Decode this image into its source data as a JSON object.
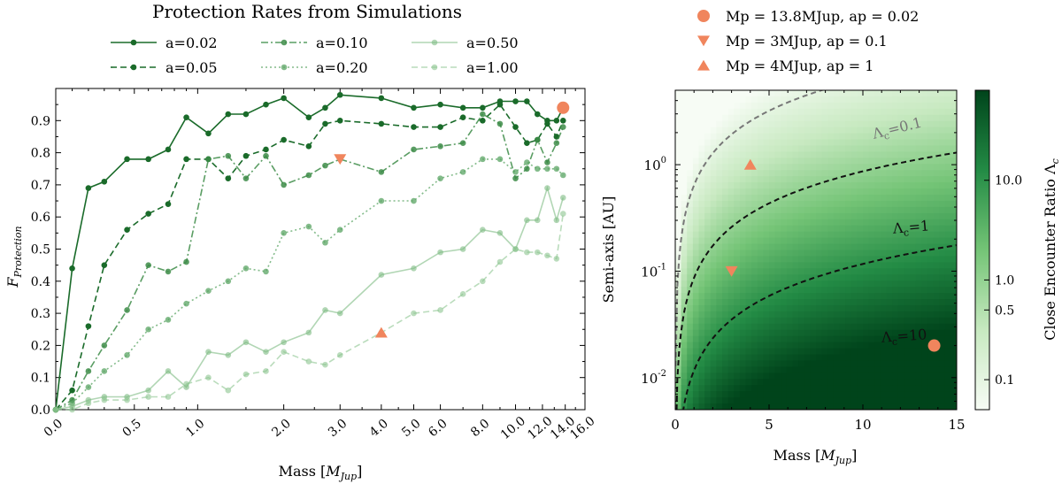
{
  "left": {
    "title": "Protection Rates from Simulations",
    "xlabel": "Mass [",
    "xlabel_unit": "M",
    "xlabel_sub": "Jup",
    "xlabel_close": "]",
    "ylabel": "F",
    "ylabel_sub": "Protection"
  },
  "right": {
    "xlabel": "Mass [",
    "xlabel_unit": "M",
    "xlabel_sub": "Jup",
    "xlabel_close": "]",
    "ylabel": "Semi-axis [AU]",
    "colorbar_label": "Close Encounter Ratio Λ",
    "colorbar_label_sub": "c",
    "contour_labels": [
      {
        "text": "Λc=0.1",
        "main": "Λ",
        "sub": "c",
        "rest": "=0.1"
      },
      {
        "text": "Λc=1",
        "main": "Λ",
        "sub": "c",
        "rest": "=1"
      },
      {
        "text": "Λc=10",
        "main": "Λ",
        "sub": "c",
        "rest": "=10"
      }
    ],
    "legend": [
      {
        "marker": "circle",
        "text": "Mp = 13.8MJup, ap = 0.02"
      },
      {
        "marker": "triangle-down",
        "text": "Mp = 3MJup, ap = 0.1"
      },
      {
        "marker": "triangle-up",
        "text": "Mp = 4MJup, ap = 1"
      }
    ]
  },
  "chart_data": [
    {
      "type": "line",
      "title": "Protection Rates from Simulations",
      "xlabel": "Mass [MJup]",
      "ylabel": "FProtection",
      "xscale": "symlog",
      "xticks": [
        "0.0",
        "0.5",
        "1.0",
        "2.0",
        "3.0",
        "4.0",
        "5.0",
        "6.0",
        "8.0",
        "10.0",
        "12.0",
        "14.0",
        "16.0"
      ],
      "xtick_values": [
        0,
        0.5,
        1,
        2,
        3,
        4,
        5,
        6,
        8,
        10,
        12,
        14,
        16
      ],
      "yticks": [
        "0.0",
        "0.1",
        "0.2",
        "0.3",
        "0.4",
        "0.5",
        "0.6",
        "0.7",
        "0.8",
        "0.9"
      ],
      "ylim": [
        0,
        1.0
      ],
      "grid": false,
      "legend_placement": "top, above plot",
      "x": [
        0,
        0.1,
        0.2,
        0.3,
        0.45,
        0.6,
        0.75,
        0.9,
        1.1,
        1.3,
        1.5,
        1.75,
        2.0,
        2.4,
        2.7,
        3.0,
        4.0,
        5.0,
        6.0,
        7.0,
        8.0,
        9.0,
        10.0,
        10.8,
        11.6,
        12.4,
        13.2,
        13.8
      ],
      "series": [
        {
          "name": "a=0.02",
          "color": "#1a6b2a",
          "style": "solid",
          "values": [
            0.0,
            0.44,
            0.69,
            0.71,
            0.78,
            0.78,
            0.81,
            0.91,
            0.86,
            0.92,
            0.92,
            0.95,
            0.97,
            0.91,
            0.94,
            0.98,
            0.97,
            0.94,
            0.95,
            0.94,
            0.94,
            0.96,
            0.96,
            0.96,
            0.92,
            0.9,
            0.9,
            0.94
          ]
        },
        {
          "name": "a=0.05",
          "color": "#1a6b2a",
          "style": "dashed",
          "values": [
            0.0,
            0.06,
            0.26,
            0.45,
            0.56,
            0.61,
            0.64,
            0.78,
            0.78,
            0.72,
            0.79,
            0.81,
            0.84,
            0.82,
            0.89,
            0.9,
            0.89,
            0.88,
            0.88,
            0.91,
            0.9,
            0.95,
            0.88,
            0.83,
            0.84,
            0.89,
            0.85,
            0.9
          ]
        },
        {
          "name": "a=0.10",
          "color": "#3d8c48",
          "style": "dashdot",
          "values": [
            0.0,
            0.03,
            0.12,
            0.2,
            0.31,
            0.45,
            0.43,
            0.46,
            0.78,
            0.79,
            0.72,
            0.79,
            0.7,
            0.73,
            0.76,
            0.78,
            0.74,
            0.81,
            0.82,
            0.83,
            0.92,
            0.89,
            0.72,
            0.75,
            0.84,
            0.77,
            0.83,
            0.88
          ]
        },
        {
          "name": "a=0.20",
          "color": "#5aa463",
          "style": "dotted",
          "values": [
            0.0,
            0.02,
            0.07,
            0.12,
            0.17,
            0.25,
            0.28,
            0.33,
            0.37,
            0.4,
            0.44,
            0.43,
            0.55,
            0.57,
            0.52,
            0.56,
            0.65,
            0.65,
            0.72,
            0.74,
            0.78,
            0.78,
            0.74,
            0.77,
            0.75,
            0.75,
            0.75,
            0.73
          ]
        },
        {
          "name": "a=0.50",
          "color": "#7dbb82",
          "style": "solid",
          "values": [
            0.0,
            0.01,
            0.03,
            0.04,
            0.04,
            0.06,
            0.12,
            0.07,
            0.18,
            0.17,
            0.21,
            0.18,
            0.21,
            0.24,
            0.31,
            0.3,
            0.42,
            0.44,
            0.49,
            0.5,
            0.56,
            0.55,
            0.5,
            0.59,
            0.59,
            0.69,
            0.59,
            0.66
          ]
        },
        {
          "name": "a=1.00",
          "color": "#8cc48f",
          "style": "dashed",
          "values": [
            0.0,
            0.0,
            0.02,
            0.03,
            0.03,
            0.04,
            0.04,
            0.08,
            0.1,
            0.06,
            0.11,
            0.12,
            0.18,
            0.15,
            0.14,
            0.17,
            0.24,
            0.3,
            0.31,
            0.36,
            0.4,
            0.46,
            0.5,
            0.49,
            0.49,
            0.48,
            0.47,
            0.61
          ]
        }
      ],
      "highlight_points": [
        {
          "marker": "triangle-down",
          "x": 3.0,
          "y": 0.78,
          "color": "#f0855d"
        },
        {
          "marker": "triangle-up",
          "x": 4.0,
          "y": 0.24,
          "color": "#f0855d"
        },
        {
          "marker": "circle",
          "x": 13.8,
          "y": 0.94,
          "color": "#f0855d"
        }
      ]
    },
    {
      "type": "heatmap",
      "xlabel": "Mass [MJup]",
      "ylabel": "Semi-axis [AU]",
      "xlim": [
        0,
        15
      ],
      "ylim": [
        0.005,
        5.0
      ],
      "yscale": "log",
      "xticks": [
        "0",
        "5",
        "10",
        "15"
      ],
      "xtick_values": [
        0,
        5,
        10,
        15
      ],
      "yticks": [
        "10^-2",
        "10^-1",
        "10^0"
      ],
      "ytick_values": [
        0.01,
        0.1,
        1
      ],
      "colormap": "Greens",
      "colorbar": {
        "scale": "log",
        "ticks": [
          "0.1",
          "0.5",
          "1.0",
          "10.0"
        ],
        "tick_values": [
          0.1,
          0.5,
          1.0,
          10.0
        ],
        "range": [
          0.05,
          80
        ]
      },
      "contours": [
        {
          "level": 0.1,
          "label": "Λc=0.1",
          "color": "#777777"
        },
        {
          "level": 1,
          "label": "Λc=1",
          "color": "#111111"
        },
        {
          "level": 10,
          "label": "Λc=10",
          "color": "#111111"
        }
      ],
      "points": [
        {
          "marker": "circle",
          "x": 13.8,
          "y": 0.02,
          "color": "#f0855d",
          "label": "Mp = 13.8MJup, ap = 0.02"
        },
        {
          "marker": "triangle-down",
          "x": 3,
          "y": 0.1,
          "color": "#f0855d",
          "label": "Mp = 3MJup, ap = 0.1"
        },
        {
          "marker": "triangle-up",
          "x": 4,
          "y": 1,
          "color": "#f0855d",
          "label": "Mp = 4MJup, ap = 1"
        }
      ]
    }
  ]
}
